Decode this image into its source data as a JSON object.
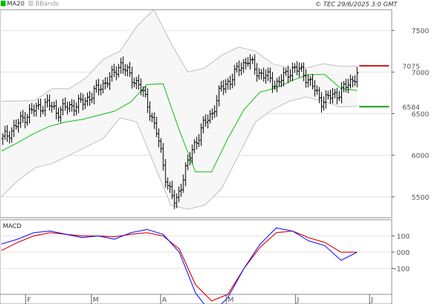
{
  "chart_data": [
    {
      "type": "candlestick",
      "legend": {
        "items": [
          "MA20",
          "BBands"
        ],
        "placement": "top-left"
      },
      "source": "© TEC 29/6/2025 3:0 GMT",
      "ylim": [
        5250,
        7750
      ],
      "y_ticks": [
        5500,
        6000,
        6500,
        7000,
        7500
      ],
      "x_tick_labels": [
        "F",
        "M",
        "A",
        "M",
        "J",
        "J"
      ],
      "grid": true,
      "levels": [
        {
          "label": "7075",
          "value": 7075,
          "color": "#cc0000"
        },
        {
          "label": "6584",
          "value": 6584,
          "color": "#009900"
        }
      ],
      "series": [
        {
          "name": "MA20",
          "color": "#00bb00",
          "values": [
            6050,
            6150,
            6260,
            6350,
            6400,
            6430,
            6480,
            6530,
            6640,
            6850,
            6860,
            6300,
            5800,
            5800,
            6200,
            6550,
            6760,
            6810,
            6900,
            6970,
            6970,
            6800,
            6780
          ]
        },
        {
          "name": "BBands upper",
          "color": "#bbbbbb",
          "values": [
            6650,
            6650,
            6660,
            6800,
            6800,
            6930,
            7150,
            7250,
            7550,
            7750,
            7350,
            7000,
            7050,
            7200,
            7300,
            7250,
            7100,
            7050,
            7050,
            7100,
            7070,
            7070
          ]
        },
        {
          "name": "BBands lower",
          "color": "#bbbbbb",
          "values": [
            5500,
            5700,
            5850,
            5900,
            6000,
            6100,
            6200,
            6450,
            6400,
            5900,
            5400,
            5350,
            5400,
            5600,
            6000,
            6400,
            6550,
            6650,
            6700,
            6650,
            6580,
            6590
          ]
        },
        {
          "name": "Price",
          "color": "#000000",
          "values": [
            6200,
            6300,
            6420,
            6520,
            6580,
            6620,
            6520,
            6580,
            6600,
            6650,
            6750,
            6850,
            6950,
            7100,
            6950,
            6850,
            6600,
            6250,
            5700,
            5400,
            5800,
            6100,
            6350,
            6500,
            6800,
            6900,
            7050,
            7150,
            7000,
            6950,
            6850,
            6950,
            7050,
            7000,
            6850,
            6650,
            6700,
            6750,
            6850,
            6980
          ]
        }
      ]
    },
    {
      "type": "line",
      "title": "MACD",
      "ylim": [
        -420,
        150
      ],
      "y_ticks": [
        100,
        0,
        -100
      ],
      "y_tick_labels": [
        "100",
        "000",
        "-100"
      ],
      "series": [
        {
          "name": "MACD",
          "color": "#1a1aff",
          "values": [
            50,
            80,
            120,
            130,
            110,
            90,
            100,
            80,
            120,
            140,
            110,
            0,
            -250,
            -380,
            -280,
            -100,
            50,
            150,
            130,
            70,
            40,
            -50,
            0
          ]
        },
        {
          "name": "Signal",
          "color": "#dd0000",
          "values": [
            10,
            60,
            100,
            120,
            110,
            100,
            100,
            95,
            110,
            120,
            100,
            20,
            -200,
            -300,
            -260,
            -100,
            30,
            120,
            130,
            90,
            60,
            0,
            0
          ]
        }
      ]
    }
  ]
}
